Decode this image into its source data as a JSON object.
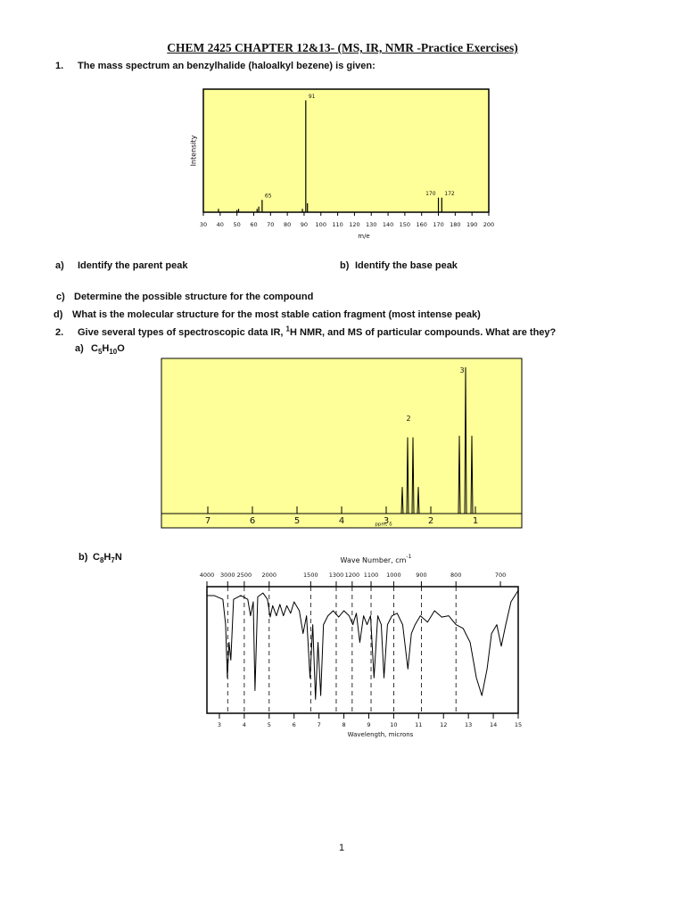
{
  "header": {
    "title": "CHEM 2425 CHAPTER 12&13- (MS, IR, NMR  -Practice Exercises)"
  },
  "questions": [
    {
      "number": "1.",
      "text": "The mass spectrum an benzylhalide (haloalkyl bezene) is given:",
      "parts": [
        {
          "label": "a)",
          "text": "Identify the parent peak"
        },
        {
          "label": "b)",
          "text": "Identify the base peak"
        },
        {
          "label": "c)",
          "text": "Determine the possible structure for the compound"
        },
        {
          "label": "d)",
          "text": "What is the molecular structure for the most stable cation fragment (most intense peak)"
        }
      ]
    },
    {
      "number": "2.",
      "text_before": "Give several types of spectroscopic data IR, ",
      "superscript": "1",
      "text_after": "H NMR, and MS of particular compounds. What are they?",
      "parts": [
        {
          "label": "a)",
          "formula": [
            "C",
            "5",
            "H",
            "10",
            "O"
          ]
        },
        {
          "label": "b)",
          "formula": [
            "C",
            "8",
            "H",
            "7",
            "N"
          ]
        }
      ]
    }
  ],
  "chart_data": [
    {
      "type": "bar",
      "xlabel": "m/e",
      "ylabel": "Intensity",
      "x": [
        39,
        50,
        51,
        62,
        63,
        65,
        89,
        91,
        92,
        170,
        172
      ],
      "values": [
        3,
        2,
        3,
        3,
        5,
        11,
        3,
        100,
        8,
        13,
        13
      ],
      "peak_labels": [
        91,
        65,
        170,
        172
      ],
      "xlim": [
        30,
        200
      ],
      "xticks": [
        30,
        40,
        50,
        60,
        70,
        80,
        90,
        100,
        110,
        120,
        130,
        140,
        150,
        160,
        170,
        180,
        190,
        200
      ],
      "ylim": [
        0,
        110
      ],
      "color": "#000000",
      "background": "#ffff99"
    },
    {
      "type": "line",
      "xlabel": "ppm, δ",
      "x": [
        8,
        2.66,
        2.64,
        2.62,
        2.54,
        2.52,
        2.5,
        2.42,
        2.4,
        2.38,
        2.3,
        2.28,
        2.26,
        1.38,
        1.36,
        1.34,
        1.24,
        1.22,
        1.2,
        1.1,
        1.08,
        1.06,
        0
      ],
      "values": [
        0,
        0,
        18,
        0,
        0,
        52,
        0,
        0,
        52,
        0,
        0,
        18,
        0,
        0,
        53,
        0,
        0,
        100,
        0,
        0,
        53,
        0,
        0
      ],
      "integrations": [
        {
          "x": 2.5,
          "y": 65,
          "label": "2"
        },
        {
          "x": 1.3,
          "y": 98,
          "label": "3"
        }
      ],
      "xlim": [
        8,
        0
      ],
      "xticks": [
        7,
        6,
        5,
        4,
        3,
        2,
        1
      ],
      "ylim": [
        0,
        105
      ],
      "color": "#000000",
      "background": "#ffff99"
    },
    {
      "type": "line",
      "xlabel": "Wavelength, microns",
      "x2label": "Wave Number, cm",
      "x2label_superscript": "-1",
      "x": [
        2.5,
        2.79,
        3.14,
        3.25,
        3.32,
        3.39,
        3.46,
        3.57,
        3.86,
        4.14,
        4.25,
        4.36,
        4.43,
        4.54,
        4.75,
        4.93,
        5.04,
        5.14,
        5.29,
        5.43,
        5.57,
        5.71,
        5.86,
        6.0,
        6.21,
        6.36,
        6.5,
        6.64,
        6.75,
        6.86,
        6.96,
        7.07,
        7.18,
        7.36,
        7.57,
        7.79,
        8.0,
        8.21,
        8.36,
        8.5,
        8.64,
        8.79,
        8.93,
        9.07,
        9.21,
        9.36,
        9.5,
        9.61,
        9.75,
        9.93,
        10.14,
        10.36,
        10.57,
        10.71,
        10.86,
        11.07,
        11.36,
        11.64,
        11.93,
        12.21,
        12.5,
        12.79,
        13.07,
        13.32,
        13.54,
        13.75,
        13.93,
        14.14,
        14.32,
        14.5,
        14.71,
        15.0
      ],
      "values": [
        93,
        93,
        90,
        70,
        28,
        56,
        42,
        90,
        93,
        90,
        77,
        88,
        18,
        92,
        95,
        90,
        76,
        85,
        77,
        86,
        77,
        85,
        79,
        88,
        81,
        63,
        77,
        28,
        70,
        11,
        56,
        14,
        70,
        77,
        81,
        76,
        81,
        77,
        70,
        79,
        56,
        77,
        70,
        77,
        28,
        77,
        70,
        28,
        70,
        77,
        79,
        70,
        35,
        63,
        70,
        77,
        72,
        81,
        76,
        77,
        70,
        67,
        56,
        28,
        14,
        35,
        63,
        70,
        53,
        70,
        88,
        97
      ],
      "xlim": [
        2.5,
        15
      ],
      "xticks": [
        3,
        4,
        5,
        6,
        7,
        8,
        9,
        10,
        11,
        12,
        13,
        14,
        15
      ],
      "x2ticks": [
        4000,
        3000,
        2500,
        2000,
        1500,
        1300,
        1200,
        1100,
        1000,
        900,
        800,
        700
      ],
      "x2_scale": "reciprocal",
      "x2_grid": true,
      "ylim": [
        0,
        100
      ],
      "color": "#000000",
      "background": "#ffffff"
    }
  ],
  "footer": {
    "page_number": "1"
  }
}
